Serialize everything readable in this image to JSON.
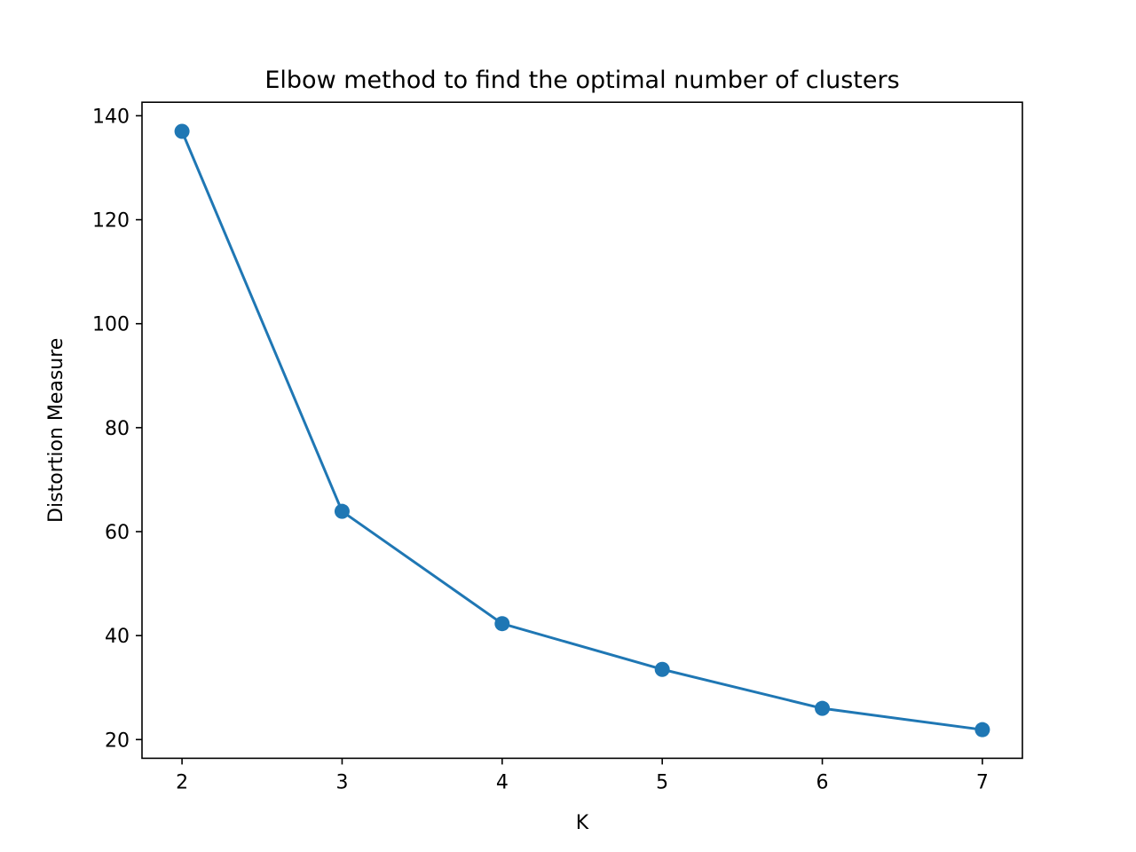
{
  "chart_data": {
    "type": "line",
    "title": "Elbow method to find the optimal number of clusters",
    "xlabel": "K",
    "ylabel": "Distortion Measure",
    "x": [
      2,
      3,
      4,
      5,
      6,
      7
    ],
    "series": [
      {
        "values": [
          137.0,
          63.9,
          42.3,
          33.5,
          26.0,
          21.9
        ],
        "color": "#1f77b4",
        "marker": "circle"
      }
    ],
    "xticks": [
      2,
      3,
      4,
      5,
      6,
      7
    ],
    "yticks": [
      20,
      40,
      60,
      80,
      100,
      120,
      140
    ],
    "xlim": [
      1.75,
      7.25
    ],
    "ylim": [
      16.4,
      142.6
    ],
    "grid": false,
    "legend": "none"
  }
}
